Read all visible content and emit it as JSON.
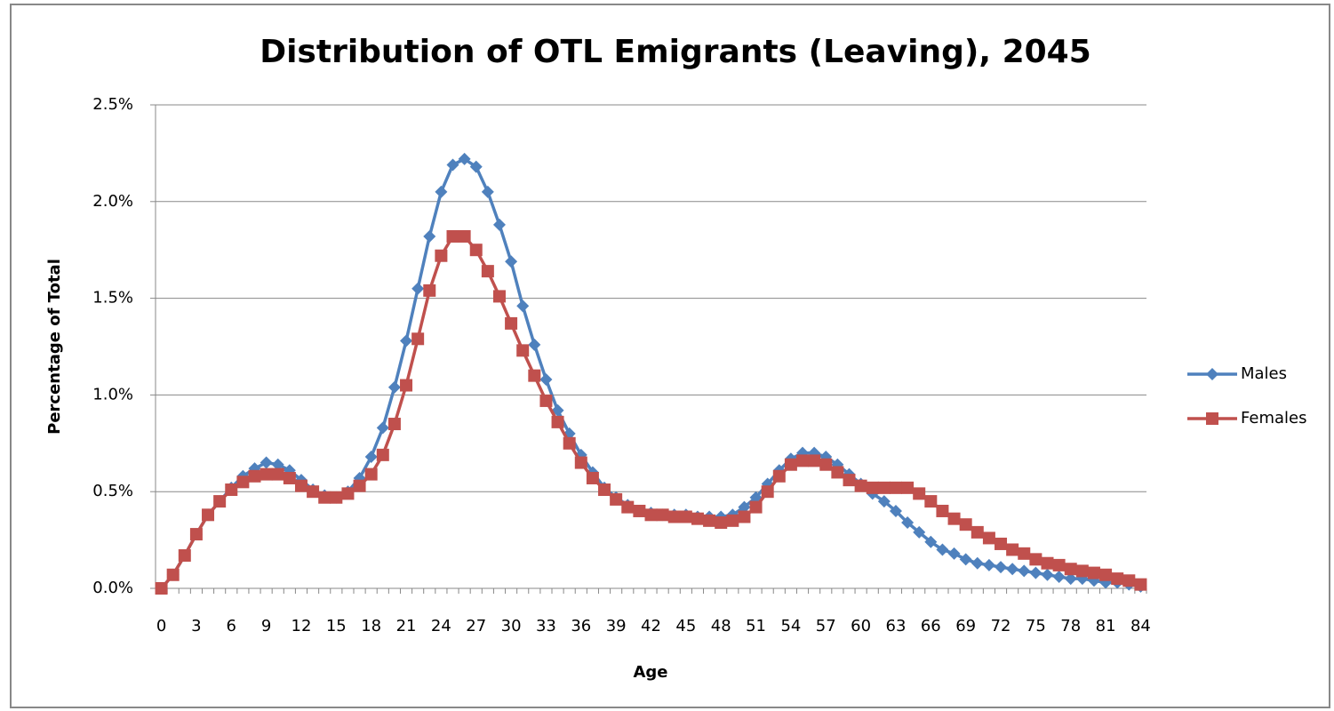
{
  "chart_data": {
    "type": "line",
    "title": "Distribution of OTL Emigrants (Leaving), 2045",
    "xlabel": "Age",
    "ylabel": "Percentage of Total",
    "categories": [
      "0",
      null,
      null,
      "3",
      null,
      null,
      "6",
      null,
      null,
      "9",
      null,
      null,
      "12",
      null,
      null,
      "15",
      null,
      null,
      "18",
      null,
      null,
      "21",
      null,
      null,
      "24",
      null,
      null,
      "27",
      null,
      null,
      "30",
      null,
      null,
      "33",
      null,
      null,
      "36",
      null,
      null,
      "39",
      null,
      null,
      "42",
      null,
      null,
      "45",
      null,
      null,
      "48",
      null,
      null,
      "51",
      null,
      null,
      "54",
      null,
      null,
      "57",
      null,
      null,
      "60",
      null,
      null,
      "63",
      null,
      null,
      "66",
      null,
      null,
      "69",
      null,
      null,
      "72",
      null,
      null,
      "75",
      null,
      null,
      "78",
      null,
      null,
      "81",
      null,
      null,
      "84"
    ],
    "series": [
      {
        "name": "Males",
        "color": "#4f81bd",
        "marker": "diamond",
        "values": [
          0,
          0.07,
          0.17,
          0.28,
          0.38,
          0.45,
          0.52,
          0.58,
          0.62,
          0.65,
          0.64,
          0.61,
          0.56,
          0.51,
          0.48,
          0.47,
          0.5,
          0.57,
          0.68,
          0.83,
          1.04,
          1.28,
          1.55,
          1.82,
          2.05,
          2.19,
          2.22,
          2.18,
          2.05,
          1.88,
          1.69,
          1.46,
          1.26,
          1.08,
          0.92,
          0.8,
          0.69,
          0.6,
          0.52,
          0.47,
          0.43,
          0.4,
          0.39,
          0.38,
          0.38,
          0.38,
          0.37,
          0.37,
          0.37,
          0.38,
          0.42,
          0.47,
          0.54,
          0.61,
          0.67,
          0.7,
          0.7,
          0.68,
          0.64,
          0.59,
          0.54,
          0.49,
          0.45,
          0.4,
          0.34,
          0.29,
          0.24,
          0.2,
          0.18,
          0.15,
          0.13,
          0.12,
          0.11,
          0.1,
          0.09,
          0.08,
          0.07,
          0.06,
          0.05,
          0.05,
          0.04,
          0.03,
          0.03,
          0.02,
          0.01
        ]
      },
      {
        "name": "Females",
        "color": "#c0504d",
        "marker": "square",
        "values": [
          0,
          0.07,
          0.17,
          0.28,
          0.38,
          0.45,
          0.51,
          0.55,
          0.58,
          0.59,
          0.59,
          0.57,
          0.53,
          0.5,
          0.47,
          0.47,
          0.49,
          0.53,
          0.59,
          0.69,
          0.85,
          1.05,
          1.29,
          1.54,
          1.72,
          1.82,
          1.82,
          1.75,
          1.64,
          1.51,
          1.37,
          1.23,
          1.1,
          0.97,
          0.86,
          0.75,
          0.65,
          0.57,
          0.51,
          0.46,
          0.42,
          0.4,
          0.38,
          0.38,
          0.37,
          0.37,
          0.36,
          0.35,
          0.34,
          0.35,
          0.37,
          0.42,
          0.5,
          0.58,
          0.64,
          0.66,
          0.66,
          0.64,
          0.6,
          0.56,
          0.53,
          0.52,
          0.52,
          0.52,
          0.52,
          0.49,
          0.45,
          0.4,
          0.36,
          0.33,
          0.29,
          0.26,
          0.23,
          0.2,
          0.18,
          0.15,
          0.13,
          0.12,
          0.1,
          0.09,
          0.08,
          0.07,
          0.05,
          0.04,
          0.02
        ]
      }
    ],
    "ylim": [
      0,
      2.5
    ],
    "yticks": [
      {
        "value": 0,
        "label": "0.0%"
      },
      {
        "value": 0.5,
        "label": "0.5%"
      },
      {
        "value": 1,
        "label": "1.0%"
      },
      {
        "value": 1.5,
        "label": "1.5%"
      },
      {
        "value": 2,
        "label": "2.0%"
      },
      {
        "value": 2.5,
        "label": "2.5%"
      }
    ],
    "grid": true,
    "legend": "right"
  }
}
